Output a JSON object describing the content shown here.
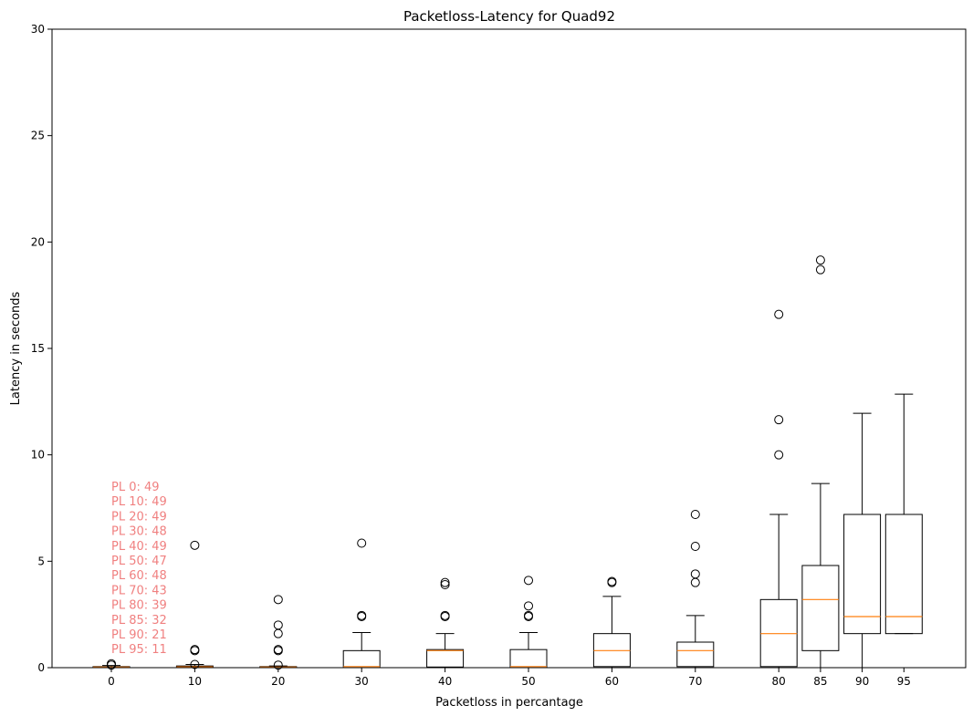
{
  "chart_data": {
    "type": "box",
    "title": "Packetloss-Latency for Quad92",
    "xlabel": "Packetloss in percantage",
    "ylabel": "Latency in seconds",
    "ylim": [
      0,
      30
    ],
    "y_ticks": [
      0,
      5,
      10,
      15,
      20,
      25,
      30
    ],
    "grid": false,
    "colors": {
      "box": "#000000",
      "median": "#ff7f0e",
      "annotation": "#f08080"
    },
    "boxes": [
      {
        "label": "0",
        "x": 0,
        "whislo": 0.0,
        "q1": 0.0,
        "med": 0.03,
        "q3": 0.05,
        "whishi": 0.1,
        "fliers": [
          0.12,
          0.18
        ]
      },
      {
        "label": "10",
        "x": 10,
        "whislo": 0.0,
        "q1": 0.02,
        "med": 0.04,
        "q3": 0.08,
        "whishi": 0.15,
        "fliers": [
          0.15,
          0.8,
          0.85,
          5.75
        ]
      },
      {
        "label": "20",
        "x": 20,
        "whislo": 0.0,
        "q1": 0.01,
        "med": 0.03,
        "q3": 0.05,
        "whishi": 0.08,
        "fliers": [
          0.12,
          0.8,
          0.85,
          1.6,
          2.0,
          3.2
        ]
      },
      {
        "label": "30",
        "x": 30,
        "whislo": 0.0,
        "q1": 0.0,
        "med": 0.05,
        "q3": 0.8,
        "whishi": 1.65,
        "fliers": [
          2.4,
          2.45,
          5.85
        ]
      },
      {
        "label": "40",
        "x": 40,
        "whislo": 0.0,
        "q1": 0.03,
        "med": 0.8,
        "q3": 0.85,
        "whishi": 1.6,
        "fliers": [
          2.4,
          2.45,
          3.9,
          4.0
        ]
      },
      {
        "label": "50",
        "x": 50,
        "whislo": 0.0,
        "q1": 0.0,
        "med": 0.05,
        "q3": 0.85,
        "whishi": 1.65,
        "fliers": [
          2.4,
          2.45,
          2.9,
          4.1
        ]
      },
      {
        "label": "60",
        "x": 60,
        "whislo": 0.0,
        "q1": 0.05,
        "med": 0.8,
        "q3": 1.6,
        "whishi": 3.35,
        "fliers": [
          4.0,
          4.05
        ]
      },
      {
        "label": "70",
        "x": 70,
        "whislo": 0.0,
        "q1": 0.05,
        "med": 0.8,
        "q3": 1.2,
        "whishi": 2.45,
        "fliers": [
          4.0,
          4.4,
          5.7,
          7.2
        ]
      },
      {
        "label": "80",
        "x": 80,
        "whislo": 0.0,
        "q1": 0.05,
        "med": 1.6,
        "q3": 3.2,
        "whishi": 7.2,
        "fliers": [
          10.0,
          11.65,
          16.6
        ]
      },
      {
        "label": "85",
        "x": 85,
        "whislo": 0.0,
        "q1": 0.8,
        "med": 3.2,
        "q3": 4.8,
        "whishi": 8.65,
        "fliers": [
          18.7,
          19.15
        ]
      },
      {
        "label": "90",
        "x": 90,
        "whislo": 0.0,
        "q1": 1.6,
        "med": 2.4,
        "q3": 7.2,
        "whishi": 11.95,
        "fliers": []
      },
      {
        "label": "95",
        "x": 95,
        "whislo": 1.6,
        "q1": 1.6,
        "med": 2.4,
        "q3": 7.2,
        "whishi": 12.85,
        "fliers": []
      }
    ],
    "annotations": [
      "PL 0: 49",
      "PL 10: 49",
      "PL 20: 49",
      "PL 30: 48",
      "PL 40: 49",
      "PL 50: 47",
      "PL 60: 48",
      "PL 70: 43",
      "PL 80: 39",
      "PL 85: 32",
      "PL 90: 21",
      "PL 95: 11"
    ]
  }
}
